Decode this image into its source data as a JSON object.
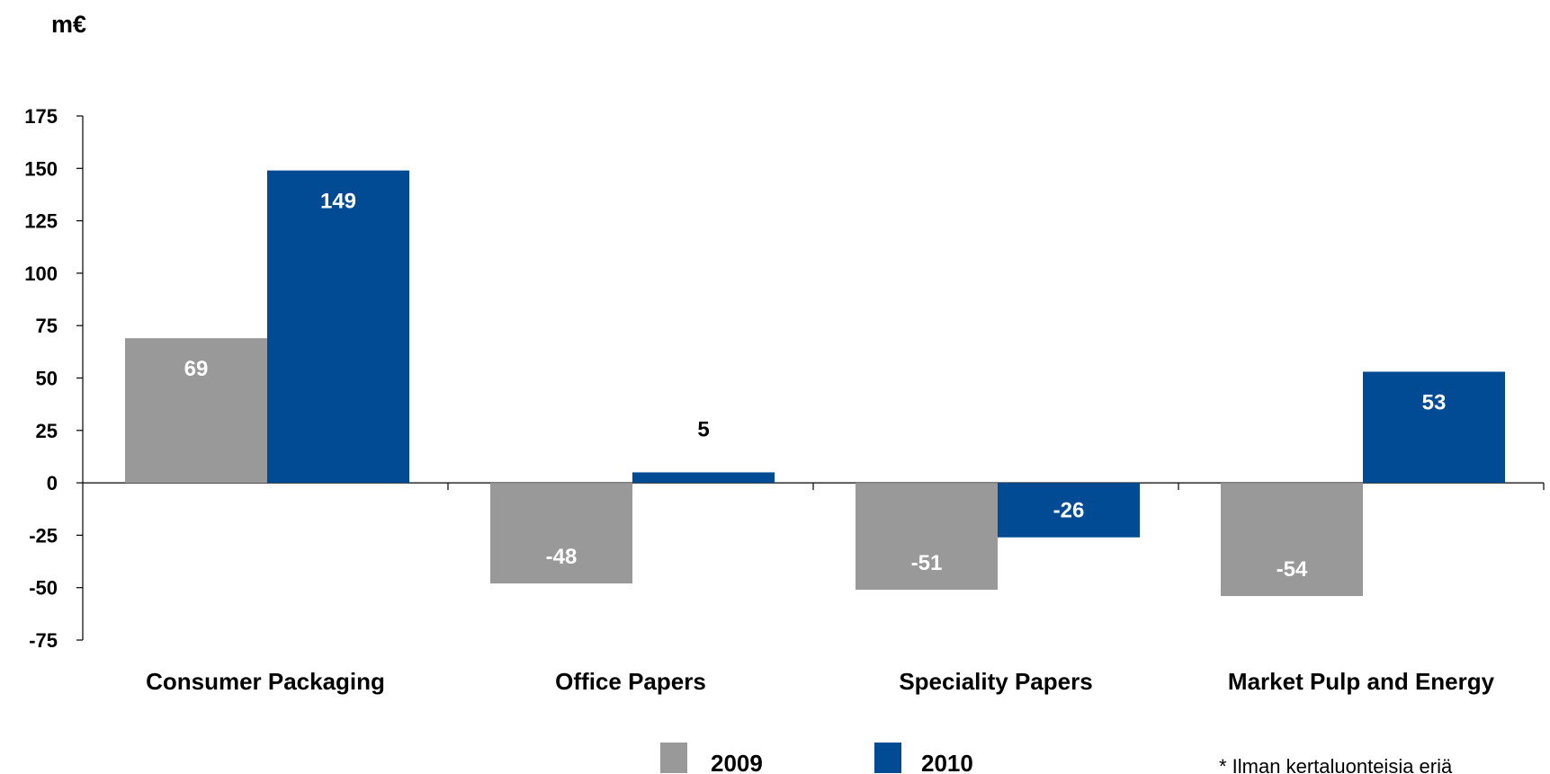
{
  "chart_data": {
    "type": "bar",
    "unit_label": "m€",
    "categories": [
      "Consumer Packaging",
      "Office Papers",
      "Speciality Papers",
      "Market Pulp and Energy"
    ],
    "series": [
      {
        "name": "2009",
        "color": "#999999",
        "values": [
          69,
          -48,
          -51,
          -54
        ],
        "labels": [
          "69",
          "-48",
          "-51",
          "-54"
        ]
      },
      {
        "name": "2010",
        "color": "#004b93",
        "values": [
          149,
          5,
          -26,
          53
        ],
        "labels": [
          "149",
          "5",
          "-26",
          "53"
        ]
      }
    ],
    "ylim": [
      -75,
      175
    ],
    "yticks": [
      175,
      150,
      125,
      100,
      75,
      50,
      25,
      0,
      -25,
      -50,
      -75
    ],
    "grid": false,
    "legend_position": "bottom",
    "footnote": "* Ilman kertaluonteisia eriä"
  }
}
